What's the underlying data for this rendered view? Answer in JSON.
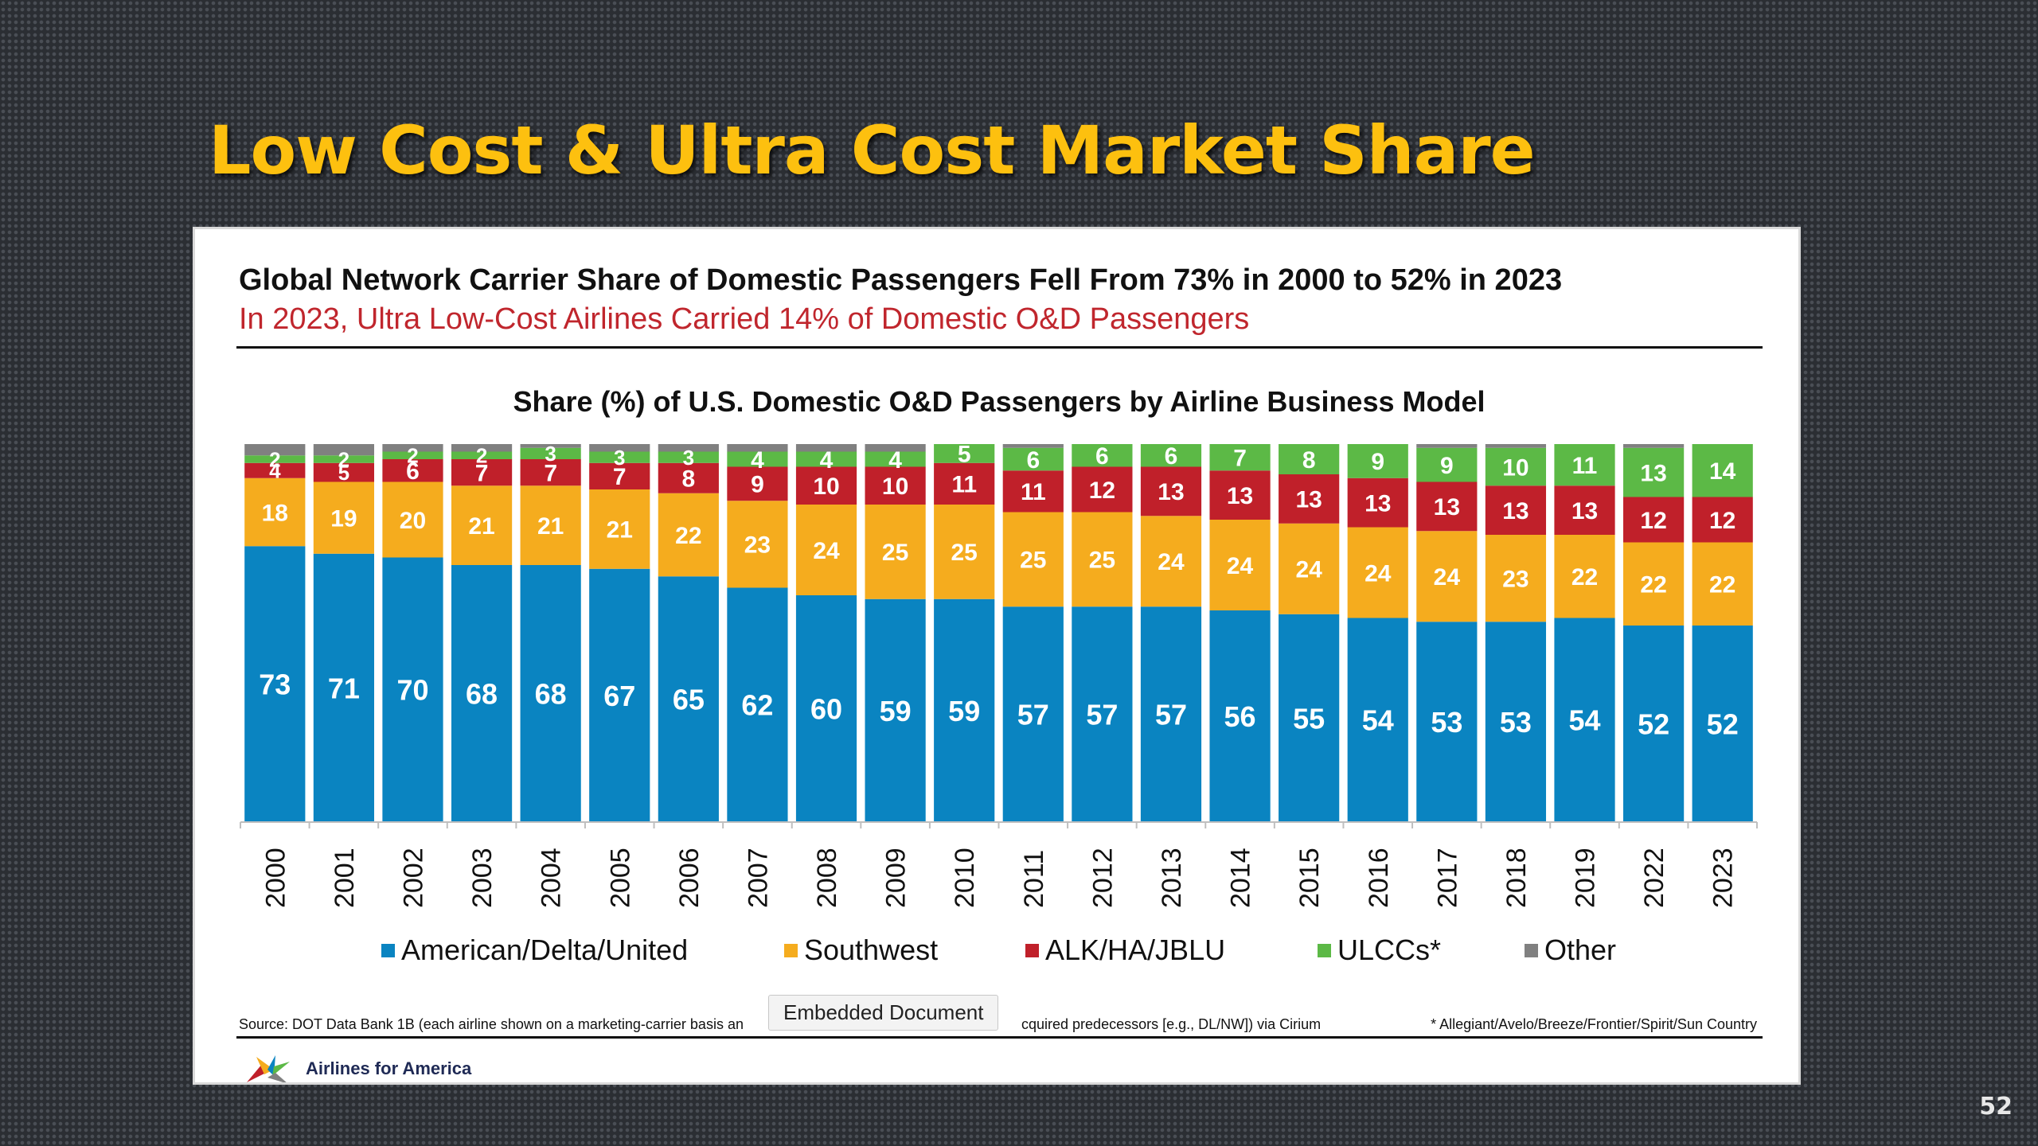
{
  "slide": {
    "title": "Low Cost & Ultra Cost Market Share",
    "page_number": "52"
  },
  "panel": {
    "headline": "Global Network Carrier Share of Domestic Passengers Fell From 73% in 2000 to 52% in 2023",
    "subheadline": "In 2023, Ultra Low-Cost Airlines Carried 14% of Domestic O&D Passengers",
    "source": "Source: DOT Data Bank 1B (each airline shown on a marketing-carrier basis an",
    "source_tail": "cquired predecessors [e.g., DL/NW]) via Cirium",
    "footnote": "* Allegiant/Avelo/Breeze/Frontier/Spirit/Sun Country",
    "tooltip": "Embedded Document",
    "logo_text": "Airlines for America"
  },
  "chart_data": {
    "type": "bar",
    "stacked": true,
    "title": "Share (%) of U.S. Domestic O&D Passengers by Airline Business Model",
    "xlabel": "",
    "ylabel": "",
    "ylim": [
      0,
      100
    ],
    "grid": false,
    "legend_position": "bottom",
    "categories": [
      "2000",
      "2001",
      "2002",
      "2003",
      "2004",
      "2005",
      "2006",
      "2007",
      "2008",
      "2009",
      "2010",
      "2011",
      "2012",
      "2013",
      "2014",
      "2015",
      "2016",
      "2017",
      "2018",
      "2019",
      "2022",
      "2023"
    ],
    "series": [
      {
        "name": "American/Delta/United",
        "color": "#0a84c1",
        "values": [
          73,
          71,
          70,
          68,
          68,
          67,
          65,
          62,
          60,
          59,
          59,
          57,
          57,
          57,
          56,
          55,
          54,
          53,
          53,
          54,
          52,
          52
        ]
      },
      {
        "name": "Southwest",
        "color": "#f5ac1e",
        "values": [
          18,
          19,
          20,
          21,
          21,
          21,
          22,
          23,
          24,
          25,
          25,
          25,
          25,
          24,
          24,
          24,
          24,
          24,
          23,
          22,
          22,
          22
        ]
      },
      {
        "name": "ALK/HA/JBLU",
        "color": "#c0202a",
        "values": [
          4,
          5,
          6,
          7,
          7,
          7,
          8,
          9,
          10,
          10,
          11,
          11,
          12,
          13,
          13,
          13,
          13,
          13,
          13,
          13,
          12,
          12
        ]
      },
      {
        "name": "ULCCs*",
        "color": "#5cb946",
        "values": [
          2,
          2,
          2,
          2,
          3,
          3,
          3,
          4,
          4,
          4,
          5,
          6,
          6,
          6,
          7,
          8,
          9,
          9,
          10,
          11,
          13,
          14
        ]
      },
      {
        "name": "Other",
        "color": "#808080",
        "values": [
          3,
          3,
          2,
          2,
          1,
          2,
          2,
          2,
          2,
          2,
          0,
          1,
          0,
          0,
          0,
          0,
          0,
          1,
          1,
          0,
          1,
          0
        ]
      }
    ]
  }
}
